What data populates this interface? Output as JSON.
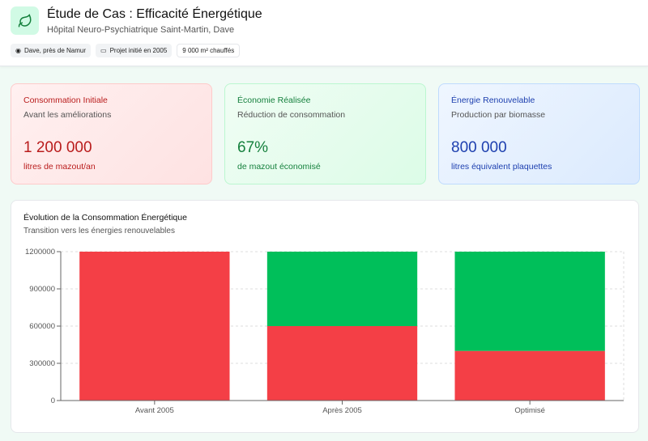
{
  "header": {
    "title": "Étude de Cas : Efficacité Énergétique",
    "subtitle": "Hôpital Neuro-Psychiatrique Saint-Martin, Dave",
    "logo_icon": "leaf-icon",
    "badges": [
      {
        "icon": "map-pin-icon",
        "label": "Dave, près de Namur"
      },
      {
        "icon": "calendar-icon",
        "label": "Projet initié en 2005"
      },
      {
        "label": "9 000 m² chauffés"
      }
    ]
  },
  "cards": [
    {
      "title": "Consommation Initiale",
      "subtitle": "Avant les améliorations",
      "value": "1 200 000",
      "unit": "litres de mazout/an",
      "color": "#b91c1c"
    },
    {
      "title": "Économie Réalisée",
      "subtitle": "Réduction de consommation",
      "value": "67%",
      "unit": "de mazout économisé",
      "color": "#15803d"
    },
    {
      "title": "Énergie Renouvelable",
      "subtitle": "Production par biomasse",
      "value": "800 000",
      "unit": "litres équivalent plaquettes",
      "color": "#1e40af"
    }
  ],
  "chart": {
    "title": "Évolution de la Consommation Énergétique",
    "subtitle": "Transition vers les énergies renouvelables"
  },
  "chart_data": {
    "type": "bar",
    "stacked": true,
    "categories": [
      "Avant 2005",
      "Après 2005",
      "Optimisé"
    ],
    "series": [
      {
        "values": [
          1200000,
          600000,
          400000
        ],
        "color": "#f43f46"
      },
      {
        "values": [
          0,
          600000,
          800000
        ],
        "color": "#00bf5a"
      }
    ],
    "ylim": [
      0,
      1200000
    ],
    "yticks": [
      0,
      300000,
      600000,
      900000,
      1200000
    ],
    "grid": true
  }
}
